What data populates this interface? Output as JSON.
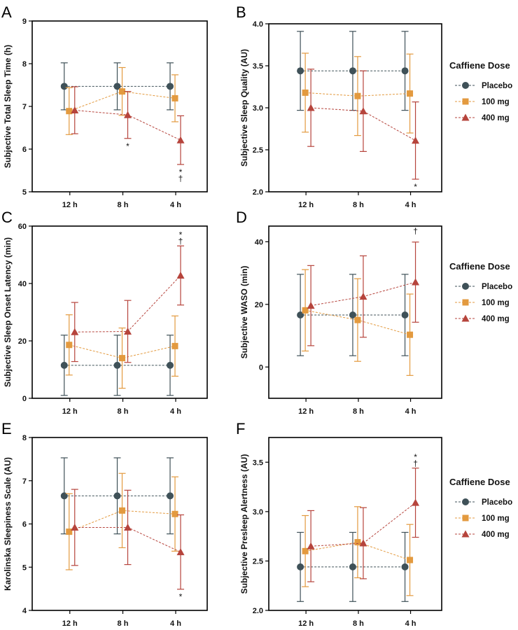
{
  "colors": {
    "Placebo": "#3f5158",
    "100 mg": "#e39a3f",
    "400 mg": "#b6443c"
  },
  "legend": {
    "title": "Caffiene Dose",
    "entries": [
      "Placebo",
      "100 mg",
      "400 mg"
    ]
  },
  "chart_data": [
    {
      "panel": "A",
      "type": "line",
      "categories": [
        "12 h",
        "8 h",
        "4 h"
      ],
      "ylabel": "Subjective Total Sleep Time (h)",
      "ylim": [
        5,
        9
      ],
      "yticks": [
        5,
        6,
        7,
        8,
        9
      ],
      "ytick_labels": [
        "5",
        "6",
        "7",
        "8",
        "9"
      ],
      "legend": false,
      "series": [
        {
          "name": "Placebo",
          "values": [
            7.47,
            7.47,
            7.47
          ],
          "err": [
            0.55,
            0.55,
            0.55
          ]
        },
        {
          "name": "100 mg",
          "values": [
            6.89,
            7.35,
            7.19
          ],
          "err": [
            0.55,
            0.56,
            0.55
          ]
        },
        {
          "name": "400 mg",
          "values": [
            6.91,
            6.8,
            6.21
          ],
          "err": [
            0.55,
            0.55,
            0.57
          ]
        }
      ],
      "annotations": [
        {
          "category": "8 h",
          "series": "400 mg",
          "text": "*",
          "position": "below"
        },
        {
          "category": "4 h",
          "series": "400 mg",
          "text": "*",
          "position": "below"
        },
        {
          "category": "4 h",
          "series": "400 mg",
          "text": "†",
          "position": "below"
        }
      ]
    },
    {
      "panel": "B",
      "type": "line",
      "categories": [
        "12 h",
        "8 h",
        "4 h"
      ],
      "ylabel": "Subjective Sleep Quality (AU)",
      "ylim": [
        2.0,
        4.0
      ],
      "yticks": [
        2.0,
        2.5,
        3.0,
        3.5,
        4.0
      ],
      "ytick_labels": [
        "2.0",
        "2.5",
        "3.0",
        "3.5",
        "4.0"
      ],
      "legend": true,
      "series": [
        {
          "name": "Placebo",
          "values": [
            3.44,
            3.44,
            3.44
          ],
          "err": [
            0.47,
            0.47,
            0.47
          ]
        },
        {
          "name": "100 mg",
          "values": [
            3.18,
            3.14,
            3.17
          ],
          "err": [
            0.47,
            0.47,
            0.47
          ]
        },
        {
          "name": "400 mg",
          "values": [
            3.0,
            2.96,
            2.61
          ],
          "err": [
            0.46,
            0.48,
            0.46
          ]
        }
      ],
      "annotations": [
        {
          "category": "4 h",
          "series": "400 mg",
          "text": "*",
          "position": "below"
        }
      ]
    },
    {
      "panel": "C",
      "type": "line",
      "categories": [
        "12 h",
        "8 h",
        "4 h"
      ],
      "ylabel": "Subjective Sleep Onset Latency  (min)",
      "ylim": [
        0,
        60
      ],
      "yticks": [
        0,
        20,
        40,
        60
      ],
      "ytick_labels": [
        "0",
        "20",
        "40",
        "60"
      ],
      "legend": false,
      "series": [
        {
          "name": "Placebo",
          "values": [
            11.5,
            11.5,
            11.5
          ],
          "err": [
            10.5,
            10.5,
            10.5
          ]
        },
        {
          "name": "100 mg",
          "values": [
            18.6,
            14.0,
            18.2
          ],
          "err": [
            10.5,
            10.5,
            10.5
          ]
        },
        {
          "name": "400 mg",
          "values": [
            23.1,
            23.3,
            42.8
          ],
          "err": [
            10.3,
            10.8,
            10.3
          ]
        }
      ],
      "annotations": [
        {
          "category": "4 h",
          "series": "400 mg",
          "text": "*",
          "position": "above"
        },
        {
          "category": "4 h",
          "series": "400 mg",
          "text": "†",
          "position": "above"
        }
      ]
    },
    {
      "panel": "D",
      "type": "line",
      "categories": [
        "12 h",
        "8 h",
        "4 h"
      ],
      "ylabel": "Subjective WASO (min)",
      "ylim": [
        -10,
        45
      ],
      "yticks": [
        0,
        20,
        40
      ],
      "ytick_labels": [
        "0",
        "20",
        "40"
      ],
      "legend": true,
      "series": [
        {
          "name": "Placebo",
          "values": [
            16.6,
            16.6,
            16.6
          ],
          "err": [
            13.0,
            13.0,
            13.0
          ]
        },
        {
          "name": "100 mg",
          "values": [
            18.1,
            15.0,
            10.3
          ],
          "err": [
            13.0,
            13.2,
            13.0
          ]
        },
        {
          "name": "400 mg",
          "values": [
            19.6,
            22.5,
            27.1
          ],
          "err": [
            12.8,
            13.0,
            12.8
          ]
        }
      ],
      "annotations": [
        {
          "category": "4 h",
          "series": "400 mg",
          "text": "†",
          "position": "above"
        }
      ]
    },
    {
      "panel": "E",
      "type": "line",
      "categories": [
        "12 h",
        "8 h",
        "4 h"
      ],
      "ylabel": "Karolinska Sleepiness Scale (AU)",
      "ylim": [
        4,
        8
      ],
      "yticks": [
        4,
        5,
        6,
        7,
        8
      ],
      "ytick_labels": [
        "4",
        "5",
        "6",
        "7",
        "8"
      ],
      "legend": false,
      "series": [
        {
          "name": "Placebo",
          "values": [
            6.65,
            6.65,
            6.65
          ],
          "err": [
            0.88,
            0.88,
            0.88
          ]
        },
        {
          "name": "100 mg",
          "values": [
            5.82,
            6.31,
            6.23
          ],
          "err": [
            0.88,
            0.86,
            0.86
          ]
        },
        {
          "name": "400 mg",
          "values": [
            5.92,
            5.92,
            5.35
          ],
          "err": [
            0.88,
            0.86,
            0.86
          ]
        }
      ],
      "annotations": [
        {
          "category": "4 h",
          "series": "400 mg",
          "text": "*",
          "position": "below"
        }
      ]
    },
    {
      "panel": "F",
      "type": "line",
      "categories": [
        "12 h",
        "8 h",
        "4 h"
      ],
      "ylabel": "Subjective Presleep Alertness (AU)",
      "ylim": [
        2.0,
        3.75
      ],
      "yticks": [
        2.0,
        2.5,
        3.0,
        3.5
      ],
      "ytick_labels": [
        "2.0",
        "2.5",
        "3.0",
        "3.5"
      ],
      "legend": true,
      "series": [
        {
          "name": "Placebo",
          "values": [
            2.44,
            2.44,
            2.44
          ],
          "err": [
            0.35,
            0.35,
            0.35
          ]
        },
        {
          "name": "100 mg",
          "values": [
            2.6,
            2.69,
            2.51
          ],
          "err": [
            0.36,
            0.36,
            0.36
          ]
        },
        {
          "name": "400 mg",
          "values": [
            2.65,
            2.68,
            3.09
          ],
          "err": [
            0.36,
            0.36,
            0.35
          ]
        }
      ],
      "annotations": [
        {
          "category": "4 h",
          "series": "400 mg",
          "text": "*",
          "position": "above"
        },
        {
          "category": "4 h",
          "series": "400 mg",
          "text": "†",
          "position": "above"
        }
      ]
    }
  ]
}
